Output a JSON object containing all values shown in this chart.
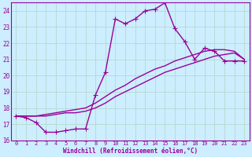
{
  "xlabel": "Windchill (Refroidissement éolien,°C)",
  "bg_color": "#cceeff",
  "line_color": "#990099",
  "grid_color": "#b8d8cc",
  "xmin": -0.5,
  "xmax": 23.5,
  "ymin": 16,
  "ymax": 24.5,
  "yticks": [
    16,
    17,
    18,
    19,
    20,
    21,
    22,
    23,
    24
  ],
  "xticks": [
    0,
    1,
    2,
    3,
    4,
    5,
    6,
    7,
    8,
    9,
    10,
    11,
    12,
    13,
    14,
    15,
    16,
    17,
    18,
    19,
    20,
    21,
    22,
    23
  ],
  "series1_x": [
    0,
    1,
    2,
    3,
    4,
    5,
    6,
    7,
    8,
    9,
    10,
    11,
    12,
    13,
    14,
    15,
    16,
    17,
    18,
    19,
    20,
    21,
    22,
    23
  ],
  "series1_y": [
    17.5,
    17.4,
    17.1,
    16.5,
    16.5,
    16.6,
    16.7,
    16.7,
    18.8,
    20.2,
    23.5,
    23.2,
    23.5,
    24.0,
    24.1,
    24.5,
    22.9,
    22.1,
    21.0,
    21.7,
    21.5,
    20.9,
    20.9,
    20.9
  ],
  "series2_x": [
    0,
    1,
    2,
    3,
    4,
    5,
    6,
    7,
    8,
    9,
    10,
    11,
    12,
    13,
    14,
    15,
    16,
    17,
    18,
    19,
    20,
    21,
    22,
    23
  ],
  "series2_y": [
    17.5,
    17.5,
    17.5,
    17.5,
    17.6,
    17.7,
    17.7,
    17.8,
    18.0,
    18.3,
    18.7,
    19.0,
    19.3,
    19.6,
    19.9,
    20.2,
    20.4,
    20.6,
    20.8,
    21.0,
    21.2,
    21.3,
    21.4,
    21.0
  ],
  "series3_x": [
    0,
    1,
    2,
    3,
    4,
    5,
    6,
    7,
    8,
    9,
    10,
    11,
    12,
    13,
    14,
    15,
    16,
    17,
    18,
    19,
    20,
    21,
    22,
    23
  ],
  "series3_y": [
    17.5,
    17.5,
    17.5,
    17.6,
    17.7,
    17.8,
    17.9,
    18.0,
    18.3,
    18.7,
    19.1,
    19.4,
    19.8,
    20.1,
    20.4,
    20.6,
    20.9,
    21.1,
    21.3,
    21.5,
    21.6,
    21.6,
    21.5,
    21.0
  ],
  "markersize": 3,
  "linewidth": 1.0
}
